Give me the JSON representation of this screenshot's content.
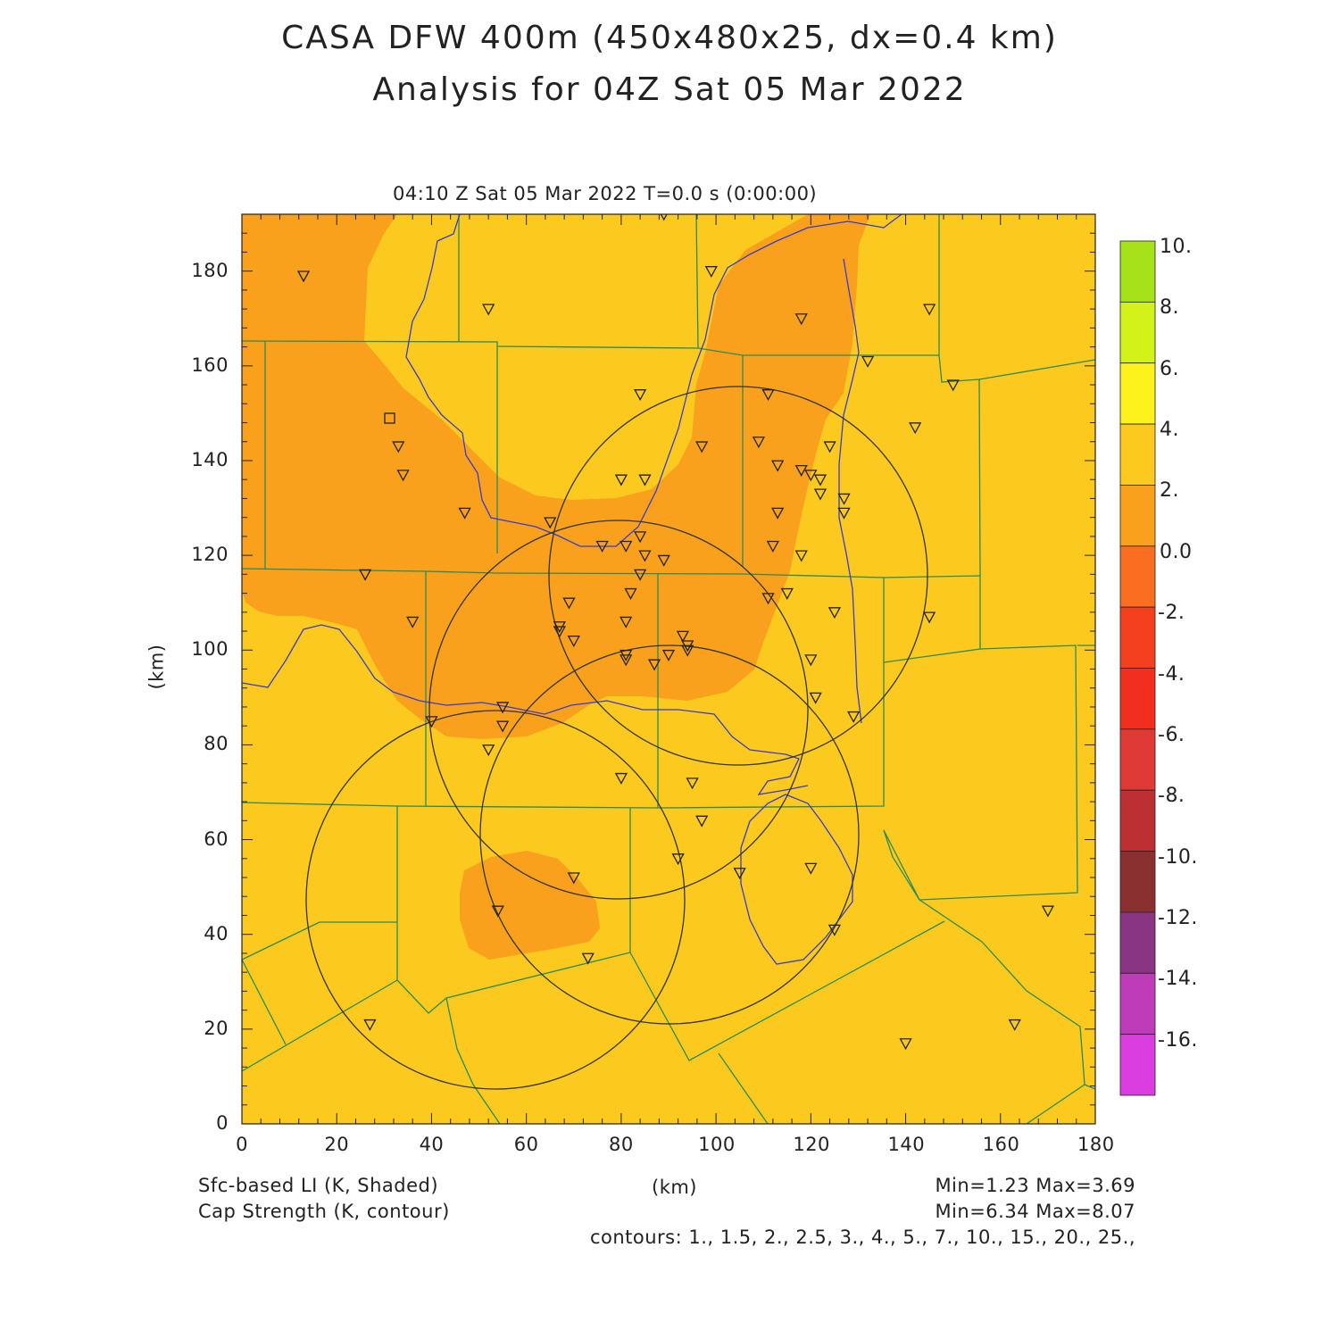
{
  "titles": {
    "line1": "CASA DFW 400m (450x480x25, dx=0.4 km)",
    "line2": "Analysis for 04Z Sat 05 Mar 2022"
  },
  "time_label": "04:10 Z Sat 05 Mar 2022   T=0.0 s (0:00:00)",
  "axes": {
    "xlabel": "(km)",
    "ylabel": "(km)",
    "xlim": [
      0,
      180
    ],
    "ylim": [
      0,
      192
    ],
    "xticks": [
      "0",
      "20",
      "40",
      "60",
      "80",
      "100",
      "120",
      "140",
      "160",
      "180"
    ],
    "yticks": [
      "0",
      "20",
      "40",
      "60",
      "80",
      "100",
      "120",
      "140",
      "160",
      "180"
    ]
  },
  "colorbar": {
    "labels": [
      "10.",
      "8.",
      "6.",
      "4.",
      "2.",
      "0.0",
      "-2.",
      "-4.",
      "-6.",
      "-8.",
      "-10.",
      "-12.",
      "-14.",
      "-16."
    ],
    "colors": [
      "#a6e21a",
      "#d2f21a",
      "#fdf21c",
      "#fcca1e",
      "#f9a01d",
      "#f96e21",
      "#f4401f",
      "#f22e1e",
      "#df3a36",
      "#bd3032",
      "#8b3030",
      "#8a3484",
      "#bf3cb8",
      "#da3ee0"
    ]
  },
  "footer": {
    "field1": "Sfc-based LI (K, Shaded)",
    "field2": "Cap Strength (K, contour)",
    "center_unit": "(km)",
    "minmax1": "Min=1.23 Max=3.69",
    "minmax2": "Min=6.34 Max=8.07",
    "contours": "contours: 1., 1.5, 2., 2.5, 3., 4., 5., 7., 10., 15., 20., 25.,"
  },
  "map_data": {
    "background_color": "#fcca1e",
    "shade_color": "#f9a01d",
    "county_line_color": "#2e8b57",
    "water_line_color": "#3b3bd0",
    "radar_range_rings_km": [
      {
        "center": [
          104,
          116
        ],
        "radius": 40
      },
      {
        "center": [
          79,
          87
        ],
        "radius": 40
      },
      {
        "center": [
          52,
          48
        ],
        "radius": 40
      },
      {
        "center": [
          91,
          60
        ],
        "radius": 40
      }
    ],
    "station_count": 63,
    "square_marker": [
      31,
      149
    ]
  }
}
